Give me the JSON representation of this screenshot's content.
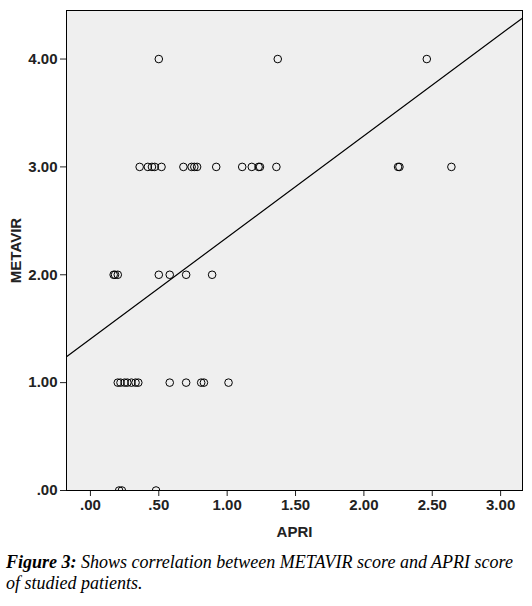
{
  "chart_data": {
    "type": "scatter",
    "caption": "Figure 3: Shows correlation between METAVIR score and APRI score of studied patients.",
    "x_label": "APRI",
    "y_label": "METAVIR",
    "x": [
      0.5,
      1.37,
      2.46,
      0.36,
      0.42,
      0.45,
      0.47,
      0.52,
      0.68,
      0.74,
      0.76,
      0.78,
      0.92,
      1.11,
      1.18,
      1.23,
      1.24,
      1.36,
      2.25,
      2.26,
      2.64,
      0.17,
      0.18,
      0.2,
      0.5,
      0.58,
      0.7,
      0.89,
      0.2,
      0.22,
      0.25,
      0.27,
      0.3,
      0.33,
      0.35,
      0.58,
      0.7,
      0.81,
      0.83,
      1.01,
      0.21,
      0.23,
      0.48
    ],
    "y": [
      4,
      4,
      4,
      3,
      3,
      3,
      3,
      3,
      3,
      3,
      3,
      3,
      3,
      3,
      3,
      3,
      3,
      3,
      3,
      3,
      3,
      2,
      2,
      2,
      2,
      2,
      2,
      2,
      1,
      1,
      1,
      1,
      1,
      1,
      1,
      1,
      1,
      1,
      1,
      1,
      0,
      0,
      0
    ],
    "fit_line": {
      "x": [
        -0.175,
        3.16
      ],
      "y": [
        1.24,
        4.38
      ]
    },
    "marker": "circle",
    "xlim": [
      -0.175,
      3.16
    ],
    "ylim": [
      0,
      4.45
    ],
    "xticks": [
      {
        "value": 0,
        "label": ".00"
      },
      {
        "value": 0.5,
        "label": ".50"
      },
      {
        "value": 1,
        "label": "1.00"
      },
      {
        "value": 1.5,
        "label": "1.50"
      },
      {
        "value": 2,
        "label": "2.00"
      },
      {
        "value": 2.5,
        "label": "2.50"
      },
      {
        "value": 3,
        "label": "3.00"
      }
    ],
    "yticks": [
      {
        "value": 0,
        "label": ".00"
      },
      {
        "value": 1,
        "label": "1.00"
      },
      {
        "value": 2,
        "label": "2.00"
      },
      {
        "value": 3,
        "label": "3.00"
      },
      {
        "value": 4,
        "label": "4.00"
      }
    ],
    "grid": false
  }
}
